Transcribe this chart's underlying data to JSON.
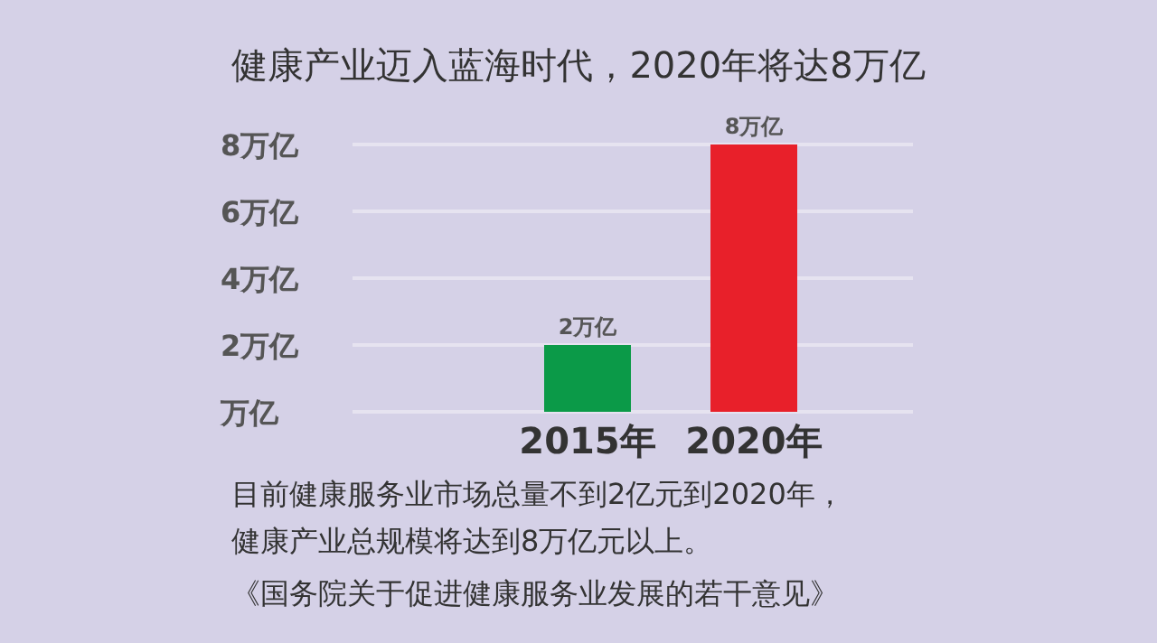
{
  "chart_data": {
    "type": "bar",
    "title": "健康产业迈入蓝海时代，2020年将达8万亿",
    "categories": [
      "2015年",
      "2020年"
    ],
    "values": [
      2,
      8
    ],
    "colors": [
      "#0b9a48",
      "#e8202a"
    ],
    "value_labels": [
      "2万亿",
      "8万亿"
    ],
    "ylim": [
      0,
      8
    ],
    "yticks": [
      {
        "value": 0,
        "label": "万亿"
      },
      {
        "value": 2,
        "label": "2万亿"
      },
      {
        "value": 4,
        "label": "4万亿"
      },
      {
        "value": 6,
        "label": "6万亿"
      },
      {
        "value": 8,
        "label": "8万亿"
      }
    ],
    "grid": "y",
    "annotations": [
      "目前健康服务业市场总量不到2亿元到2020年，",
      "健康产业总规模将达到8万亿元以上。",
      "《国务院关于促进健康服务业发展的若干意见》"
    ]
  }
}
